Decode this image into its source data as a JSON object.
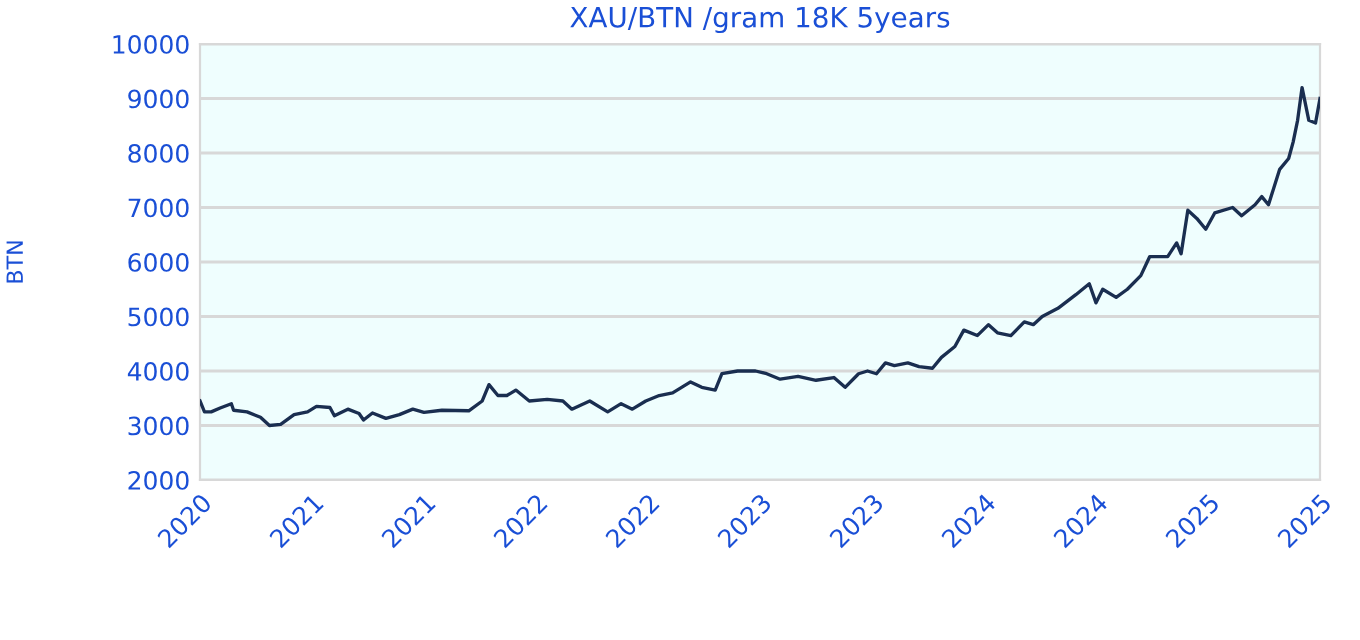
{
  "chart_data": {
    "type": "line",
    "title": "XAU/BTN /gram 18K 5years",
    "ylabel": "BTN",
    "x": [
      2020.0,
      2020.02,
      2020.05,
      2020.09,
      2020.14,
      2020.15,
      2020.21,
      2020.27,
      2020.31,
      2020.36,
      2020.42,
      2020.48,
      2020.52,
      2020.58,
      2020.6,
      2020.66,
      2020.71,
      2020.73,
      2020.77,
      2020.83,
      2020.89,
      2020.95,
      2021.0,
      2021.08,
      2021.2,
      2021.26,
      2021.29,
      2021.33,
      2021.37,
      2021.41,
      2021.47,
      2021.55,
      2021.62,
      2021.66,
      2021.74,
      2021.82,
      2021.88,
      2021.93,
      2021.99,
      2022.05,
      2022.11,
      2022.19,
      2022.24,
      2022.3,
      2022.33,
      2022.4,
      2022.48,
      2022.53,
      2022.59,
      2022.67,
      2022.75,
      2022.83,
      2022.88,
      2022.94,
      2022.98,
      2023.02,
      2023.06,
      2023.1,
      2023.16,
      2023.21,
      2023.27,
      2023.31,
      2023.37,
      2023.41,
      2023.47,
      2023.52,
      2023.56,
      2023.62,
      2023.68,
      2023.72,
      2023.76,
      2023.83,
      2023.91,
      2023.97,
      2024.0,
      2024.03,
      2024.09,
      2024.14,
      2024.2,
      2024.24,
      2024.32,
      2024.36,
      2024.38,
      2024.41,
      2024.45,
      2024.49,
      2024.53,
      2024.61,
      2024.65,
      2024.71,
      2024.74,
      2024.77,
      2024.82,
      2024.86,
      2024.88,
      2024.9,
      2024.92,
      2024.95,
      2024.98,
      2025.0
    ],
    "series": [
      {
        "color": "#1a2e50",
        "values": [
          3450,
          3250,
          3250,
          3320,
          3400,
          3280,
          3250,
          3150,
          3000,
          3020,
          3200,
          3250,
          3350,
          3330,
          3180,
          3300,
          3220,
          3100,
          3230,
          3130,
          3200,
          3300,
          3240,
          3280,
          3270,
          3450,
          3750,
          3550,
          3550,
          3650,
          3450,
          3480,
          3450,
          3300,
          3450,
          3250,
          3400,
          3300,
          3450,
          3550,
          3600,
          3800,
          3700,
          3650,
          3950,
          4000,
          4000,
          3950,
          3850,
          3900,
          3830,
          3880,
          3700,
          3950,
          4000,
          3950,
          4150,
          4100,
          4150,
          4080,
          4050,
          4250,
          4450,
          4750,
          4650,
          4850,
          4700,
          4650,
          4900,
          4850,
          5000,
          5150,
          5400,
          5600,
          5250,
          5500,
          5350,
          5500,
          5750,
          6100,
          6100,
          6350,
          6150,
          6950,
          6800,
          6600,
          6900,
          7000,
          6850,
          7050,
          7200,
          7050,
          7700,
          7900,
          8200,
          8600,
          9200,
          8600,
          8550,
          9000
        ]
      }
    ],
    "xlim": [
      2020.0,
      2025.0
    ],
    "xticks": [
      {
        "value": 2020.0,
        "label": "2020"
      },
      {
        "value": 2020.5,
        "label": "2021"
      },
      {
        "value": 2021.0,
        "label": "2021"
      },
      {
        "value": 2021.5,
        "label": "2022"
      },
      {
        "value": 2022.0,
        "label": "2022"
      },
      {
        "value": 2022.5,
        "label": "2023"
      },
      {
        "value": 2023.0,
        "label": "2023"
      },
      {
        "value": 2023.5,
        "label": "2024"
      },
      {
        "value": 2024.0,
        "label": "2024"
      },
      {
        "value": 2024.5,
        "label": "2025"
      },
      {
        "value": 2025.0,
        "label": "2025"
      }
    ],
    "ylim": [
      2000,
      10000
    ],
    "yticks": [
      2000,
      3000,
      4000,
      5000,
      6000,
      7000,
      8000,
      9000,
      10000
    ],
    "grid": "y",
    "marker": "none",
    "line_style": "solid"
  }
}
